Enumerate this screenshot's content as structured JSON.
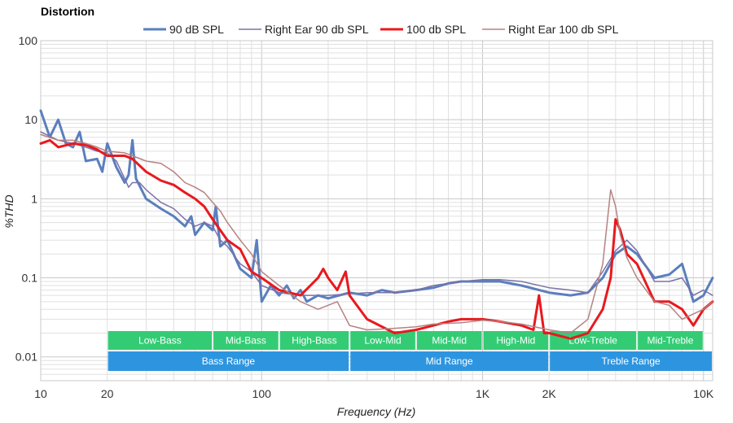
{
  "chart_data": {
    "type": "line",
    "title": "Distortion",
    "xlabel": "Frequency (Hz)",
    "ylabel": "%THD",
    "x_scale": "log",
    "y_scale": "log",
    "xlim": [
      10,
      11000
    ],
    "ylim": [
      0.005,
      100
    ],
    "grid": true,
    "legend_position": "top",
    "x_ticks": [
      {
        "value": 10,
        "label": "10"
      },
      {
        "value": 20,
        "label": "20"
      },
      {
        "value": 100,
        "label": "100"
      },
      {
        "value": 1000,
        "label": "1K"
      },
      {
        "value": 2000,
        "label": "2K"
      },
      {
        "value": 10000,
        "label": "10K"
      }
    ],
    "y_ticks": [
      {
        "value": 100,
        "label": "100"
      },
      {
        "value": 10,
        "label": "10"
      },
      {
        "value": 1,
        "label": "1"
      },
      {
        "value": 0.1,
        "label": "0.1"
      },
      {
        "value": 0.01,
        "label": "0.01"
      }
    ],
    "series": [
      {
        "name": "90 dB SPL",
        "color": "#5b7fbd",
        "width": 3,
        "points": [
          [
            10,
            13
          ],
          [
            11,
            6
          ],
          [
            12,
            10
          ],
          [
            13,
            5
          ],
          [
            14,
            4.5
          ],
          [
            15,
            7
          ],
          [
            16,
            3
          ],
          [
            18,
            3.2
          ],
          [
            19,
            2.2
          ],
          [
            20,
            5
          ],
          [
            22,
            2.5
          ],
          [
            24,
            1.6
          ],
          [
            25,
            2
          ],
          [
            26,
            5.5
          ],
          [
            27,
            1.8
          ],
          [
            30,
            1
          ],
          [
            35,
            0.75
          ],
          [
            40,
            0.6
          ],
          [
            45,
            0.45
          ],
          [
            48,
            0.6
          ],
          [
            50,
            0.35
          ],
          [
            55,
            0.5
          ],
          [
            60,
            0.4
          ],
          [
            62,
            0.8
          ],
          [
            65,
            0.25
          ],
          [
            70,
            0.3
          ],
          [
            80,
            0.13
          ],
          [
            90,
            0.1
          ],
          [
            95,
            0.3
          ],
          [
            100,
            0.05
          ],
          [
            110,
            0.08
          ],
          [
            120,
            0.06
          ],
          [
            130,
            0.08
          ],
          [
            140,
            0.055
          ],
          [
            150,
            0.07
          ],
          [
            160,
            0.05
          ],
          [
            180,
            0.06
          ],
          [
            200,
            0.055
          ],
          [
            250,
            0.065
          ],
          [
            300,
            0.06
          ],
          [
            350,
            0.07
          ],
          [
            400,
            0.065
          ],
          [
            500,
            0.07
          ],
          [
            600,
            0.075
          ],
          [
            700,
            0.085
          ],
          [
            800,
            0.09
          ],
          [
            900,
            0.09
          ],
          [
            1000,
            0.09
          ],
          [
            1200,
            0.09
          ],
          [
            1500,
            0.08
          ],
          [
            2000,
            0.065
          ],
          [
            2500,
            0.06
          ],
          [
            3000,
            0.065
          ],
          [
            3500,
            0.1
          ],
          [
            4000,
            0.2
          ],
          [
            4500,
            0.25
          ],
          [
            5000,
            0.2
          ],
          [
            6000,
            0.1
          ],
          [
            7000,
            0.11
          ],
          [
            8000,
            0.15
          ],
          [
            9000,
            0.05
          ],
          [
            10000,
            0.06
          ],
          [
            11000,
            0.1
          ]
        ]
      },
      {
        "name": "Right Ear 90 db SPL",
        "color": "#7a72a8",
        "width": 1.5,
        "points": [
          [
            10,
            7
          ],
          [
            12,
            5.5
          ],
          [
            14,
            5
          ],
          [
            16,
            4.5
          ],
          [
            18,
            4
          ],
          [
            20,
            3.8
          ],
          [
            22,
            3
          ],
          [
            24,
            1.8
          ],
          [
            25,
            1.4
          ],
          [
            26,
            1.6
          ],
          [
            28,
            1.6
          ],
          [
            30,
            1.3
          ],
          [
            35,
            0.9
          ],
          [
            40,
            0.75
          ],
          [
            45,
            0.55
          ],
          [
            50,
            0.45
          ],
          [
            55,
            0.5
          ],
          [
            60,
            0.45
          ],
          [
            65,
            0.3
          ],
          [
            70,
            0.25
          ],
          [
            80,
            0.15
          ],
          [
            90,
            0.12
          ],
          [
            100,
            0.08
          ],
          [
            120,
            0.065
          ],
          [
            150,
            0.06
          ],
          [
            200,
            0.06
          ],
          [
            300,
            0.065
          ],
          [
            400,
            0.065
          ],
          [
            500,
            0.07
          ],
          [
            600,
            0.08
          ],
          [
            800,
            0.09
          ],
          [
            1000,
            0.095
          ],
          [
            1200,
            0.095
          ],
          [
            1500,
            0.09
          ],
          [
            2000,
            0.075
          ],
          [
            2500,
            0.07
          ],
          [
            3000,
            0.065
          ],
          [
            3500,
            0.12
          ],
          [
            4000,
            0.22
          ],
          [
            4500,
            0.3
          ],
          [
            5000,
            0.22
          ],
          [
            6000,
            0.09
          ],
          [
            7000,
            0.09
          ],
          [
            8000,
            0.1
          ],
          [
            9000,
            0.06
          ],
          [
            10000,
            0.07
          ],
          [
            11000,
            0.06
          ]
        ]
      },
      {
        "name": "100 db SPL",
        "color": "#e8191e",
        "width": 3,
        "points": [
          [
            10,
            5
          ],
          [
            11,
            5.5
          ],
          [
            12,
            4.5
          ],
          [
            14,
            5
          ],
          [
            16,
            4.8
          ],
          [
            18,
            4.2
          ],
          [
            20,
            3.5
          ],
          [
            24,
            3.5
          ],
          [
            26,
            3.2
          ],
          [
            30,
            2.2
          ],
          [
            35,
            1.7
          ],
          [
            40,
            1.5
          ],
          [
            45,
            1.2
          ],
          [
            50,
            1
          ],
          [
            55,
            0.8
          ],
          [
            60,
            0.55
          ],
          [
            65,
            0.4
          ],
          [
            70,
            0.3
          ],
          [
            80,
            0.23
          ],
          [
            90,
            0.12
          ],
          [
            100,
            0.1
          ],
          [
            120,
            0.07
          ],
          [
            150,
            0.06
          ],
          [
            180,
            0.1
          ],
          [
            190,
            0.13
          ],
          [
            200,
            0.1
          ],
          [
            220,
            0.07
          ],
          [
            240,
            0.12
          ],
          [
            250,
            0.06
          ],
          [
            300,
            0.03
          ],
          [
            400,
            0.02
          ],
          [
            500,
            0.022
          ],
          [
            600,
            0.025
          ],
          [
            700,
            0.028
          ],
          [
            800,
            0.03
          ],
          [
            1000,
            0.03
          ],
          [
            1200,
            0.028
          ],
          [
            1500,
            0.025
          ],
          [
            1700,
            0.022
          ],
          [
            1800,
            0.06
          ],
          [
            1900,
            0.02
          ],
          [
            2000,
            0.02
          ],
          [
            2500,
            0.017
          ],
          [
            3000,
            0.02
          ],
          [
            3500,
            0.04
          ],
          [
            3800,
            0.1
          ],
          [
            4000,
            0.55
          ],
          [
            4200,
            0.4
          ],
          [
            4500,
            0.2
          ],
          [
            5000,
            0.15
          ],
          [
            6000,
            0.05
          ],
          [
            7000,
            0.05
          ],
          [
            8000,
            0.04
          ],
          [
            9000,
            0.025
          ],
          [
            10000,
            0.04
          ],
          [
            11000,
            0.05
          ]
        ]
      },
      {
        "name": "Right Ear 100 db SPL",
        "color": "#b58282",
        "width": 1.5,
        "points": [
          [
            10,
            6.5
          ],
          [
            12,
            5.5
          ],
          [
            14,
            5.5
          ],
          [
            16,
            5
          ],
          [
            18,
            4.5
          ],
          [
            20,
            4
          ],
          [
            24,
            3.8
          ],
          [
            26,
            3.5
          ],
          [
            30,
            3
          ],
          [
            35,
            2.8
          ],
          [
            40,
            2.2
          ],
          [
            45,
            1.6
          ],
          [
            50,
            1.4
          ],
          [
            55,
            1.2
          ],
          [
            60,
            0.9
          ],
          [
            65,
            0.7
          ],
          [
            70,
            0.5
          ],
          [
            80,
            0.3
          ],
          [
            90,
            0.2
          ],
          [
            100,
            0.12
          ],
          [
            120,
            0.08
          ],
          [
            150,
            0.05
          ],
          [
            180,
            0.04
          ],
          [
            200,
            0.045
          ],
          [
            220,
            0.05
          ],
          [
            250,
            0.025
          ],
          [
            300,
            0.022
          ],
          [
            400,
            0.023
          ],
          [
            500,
            0.024
          ],
          [
            600,
            0.026
          ],
          [
            800,
            0.027
          ],
          [
            1000,
            0.029
          ],
          [
            1200,
            0.028
          ],
          [
            1500,
            0.026
          ],
          [
            2000,
            0.022
          ],
          [
            2500,
            0.02
          ],
          [
            3000,
            0.03
          ],
          [
            3500,
            0.15
          ],
          [
            3800,
            1.3
          ],
          [
            4000,
            0.8
          ],
          [
            4200,
            0.35
          ],
          [
            4500,
            0.18
          ],
          [
            5000,
            0.1
          ],
          [
            6000,
            0.05
          ],
          [
            7000,
            0.045
          ],
          [
            8000,
            0.03
          ],
          [
            9000,
            0.035
          ],
          [
            10000,
            0.04
          ],
          [
            11000,
            0.05
          ]
        ]
      }
    ],
    "bands": [
      {
        "label": "Low-Bass",
        "from": 20,
        "to": 60,
        "row": 1,
        "color": "#33cc75"
      },
      {
        "label": "Mid-Bass",
        "from": 60,
        "to": 120,
        "row": 1,
        "color": "#33cc75"
      },
      {
        "label": "High-Bass",
        "from": 120,
        "to": 250,
        "row": 1,
        "color": "#33cc75"
      },
      {
        "label": "Low-Mid",
        "from": 250,
        "to": 500,
        "row": 1,
        "color": "#33cc75"
      },
      {
        "label": "Mid-Mid",
        "from": 500,
        "to": 1000,
        "row": 1,
        "color": "#33cc75"
      },
      {
        "label": "High-Mid",
        "from": 1000,
        "to": 2000,
        "row": 1,
        "color": "#33cc75"
      },
      {
        "label": "Low-Treble",
        "from": 2000,
        "to": 5000,
        "row": 1,
        "color": "#33cc75"
      },
      {
        "label": "Mid-Treble",
        "from": 5000,
        "to": 10000,
        "row": 1,
        "color": "#33cc75"
      },
      {
        "label": "Bass Range",
        "from": 20,
        "to": 250,
        "row": 2,
        "color": "#2d95e0"
      },
      {
        "label": "Mid Range",
        "from": 250,
        "to": 2000,
        "row": 2,
        "color": "#2d95e0"
      },
      {
        "label": "Treble Range",
        "from": 2000,
        "to": 11000,
        "row": 2,
        "color": "#2d95e0"
      }
    ]
  }
}
